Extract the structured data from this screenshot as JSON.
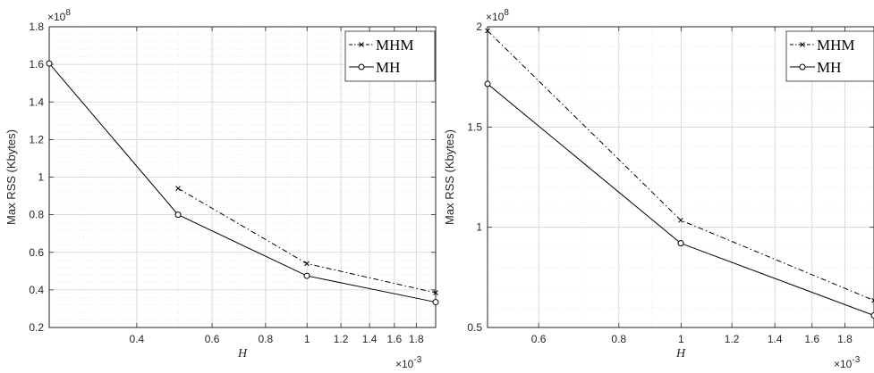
{
  "chart_data": [
    {
      "type": "line",
      "xlabel": "H",
      "ylabel": "Max RSS (Kbytes)",
      "xscale": "log",
      "yscale": "linear",
      "grid": true,
      "minor_grid": true,
      "legend_position": "top-right",
      "x_multiplier": "×10",
      "x_multiplier_exp": "-3",
      "y_multiplier": "×10",
      "y_multiplier_exp": "8",
      "xlim": [
        0.2497,
        1.998
      ],
      "ylim": [
        0.2,
        1.8
      ],
      "x_ticks": [
        0.4,
        0.6,
        0.8,
        1,
        1.2,
        1.4,
        1.6,
        1.8
      ],
      "x_tick_labels": [
        "0.4",
        "0.6",
        "0.8",
        "1",
        "1.2",
        "1.4",
        "1.6",
        "1.8"
      ],
      "y_ticks": [
        0.2,
        0.4,
        0.6,
        0.8,
        1,
        1.2,
        1.4,
        1.6,
        1.8
      ],
      "y_tick_labels": [
        "0.2",
        "0.4",
        "0.6",
        "0.8",
        "1",
        "1.2",
        "1.4",
        "1.6",
        "1.8"
      ],
      "series": [
        {
          "name": "MHM",
          "marker": "x",
          "dash": "dashdot",
          "x": [
            0.4995,
            0.999,
            1.998
          ],
          "y": [
            0.94,
            0.54,
            0.385
          ]
        },
        {
          "name": "MH",
          "marker": "o",
          "dash": "solid",
          "x": [
            0.2497,
            0.4995,
            0.999,
            1.998
          ],
          "y": [
            1.605,
            0.8,
            0.475,
            0.335
          ]
        }
      ]
    },
    {
      "type": "line",
      "xlabel": "H",
      "ylabel": "Max RSS (Kbytes)",
      "xscale": "log",
      "yscale": "linear",
      "grid": true,
      "minor_grid": true,
      "legend_position": "top-right",
      "x_multiplier": "×10",
      "x_multiplier_exp": "-3",
      "y_multiplier": "×10",
      "y_multiplier_exp": "8",
      "xlim": [
        0.4995,
        1.998
      ],
      "ylim": [
        0.5,
        2
      ],
      "x_ticks": [
        0.6,
        0.8,
        1,
        1.2,
        1.4,
        1.6,
        1.8
      ],
      "x_tick_labels": [
        "0.6",
        "0.8",
        "1",
        "1.2",
        "1.4",
        "1.6",
        "1.8"
      ],
      "y_ticks": [
        0.5,
        1,
        1.5,
        2
      ],
      "y_tick_labels": [
        "0.5",
        "1",
        "1.5",
        "2"
      ],
      "series": [
        {
          "name": "MHM",
          "marker": "x",
          "dash": "dashdot",
          "x": [
            0.4995,
            0.999,
            1.998
          ],
          "y": [
            1.98,
            1.035,
            0.635
          ]
        },
        {
          "name": "MH",
          "marker": "o",
          "dash": "solid",
          "x": [
            0.4995,
            0.999,
            1.998
          ],
          "y": [
            1.715,
            0.92,
            0.56
          ]
        }
      ]
    }
  ]
}
